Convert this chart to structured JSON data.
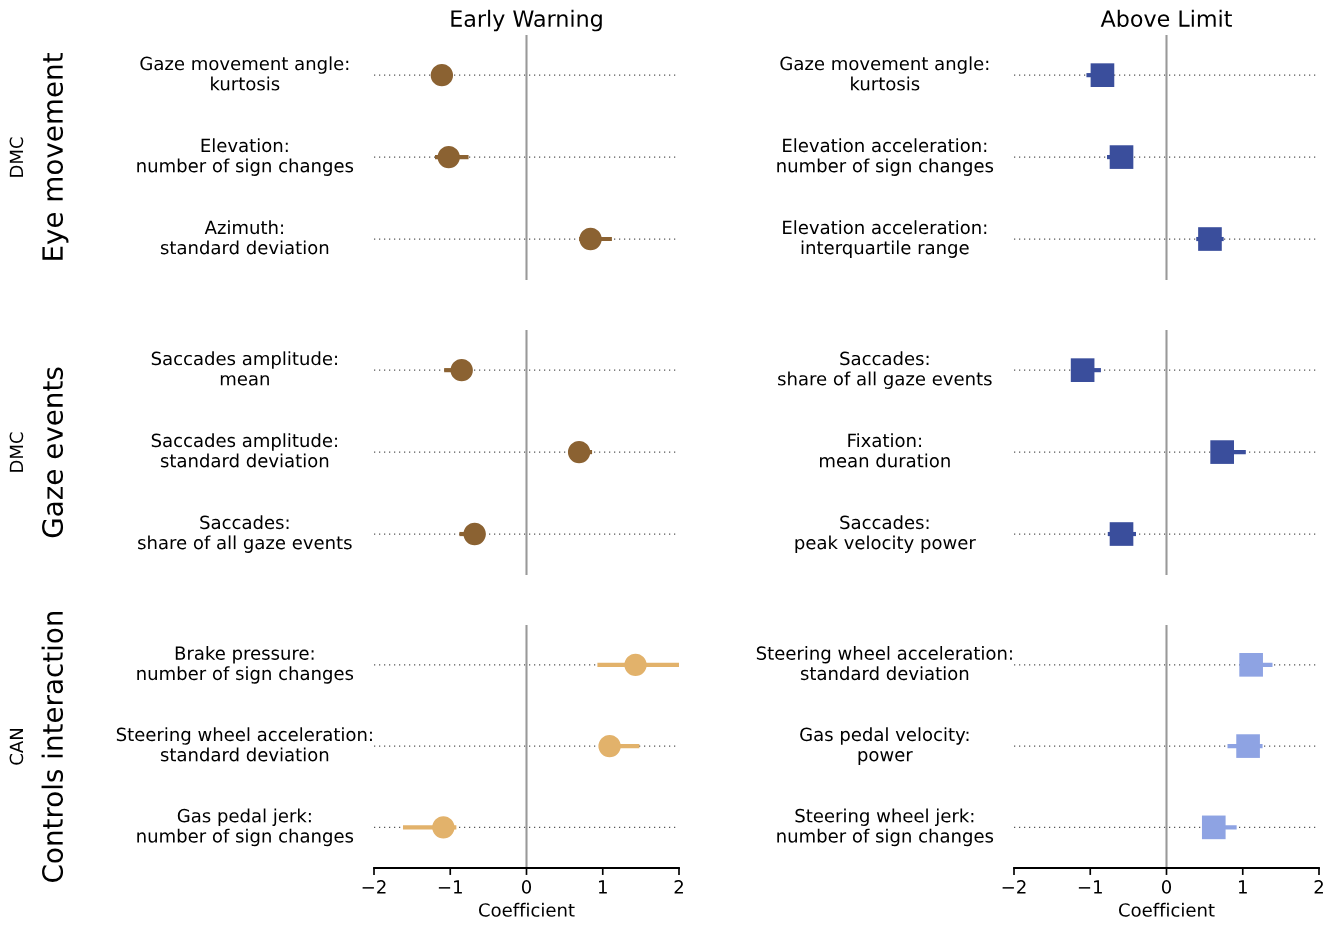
{
  "chart_data": [
    {
      "type": "scatter",
      "orientation": "horizontal",
      "title": "Early Warning",
      "ylabel": "Eye movement",
      "annotations": [
        "DMC"
      ],
      "categories": [
        "Gaze movement angle:\nkurtosis",
        "Elevation:\nnumber of sign changes",
        "Azimuth:\nstandard deviation"
      ],
      "values": [
        -1.11,
        -1.02,
        0.84
      ],
      "errors": [
        null,
        [
          -1.2,
          -0.76
        ],
        [
          0.69,
          1.12
        ]
      ],
      "color": "#8b6232",
      "marker": "circle",
      "xlim": [
        -2,
        2
      ],
      "ref_lines": [
        {
          "axis": "x",
          "value": 0,
          "color": "#999999"
        }
      ],
      "grid": "y",
      "tick_labels": "y"
    },
    {
      "type": "scatter",
      "orientation": "horizontal",
      "title": "Above Limit",
      "categories": [
        "Gaze movement angle:\nkurtosis",
        "Elevation acceleration:\nnumber of sign changes",
        "Elevation acceleration:\ninterquartile range"
      ],
      "values": [
        -0.84,
        -0.59,
        0.57
      ],
      "errors": [
        [
          -1.05,
          -0.69
        ],
        [
          -0.78,
          -0.44
        ],
        [
          0.39,
          0.75
        ]
      ],
      "color": "#3a4e9c",
      "marker": "square",
      "xlim": [
        -2,
        2
      ],
      "ref_lines": [
        {
          "axis": "x",
          "value": 0,
          "color": "#999999"
        }
      ],
      "grid": "y",
      "tick_labels": "y"
    },
    {
      "type": "scatter",
      "orientation": "horizontal",
      "ylabel": "Gaze events",
      "annotations": [
        "DMC"
      ],
      "categories": [
        "Saccades amplitude:\nmean",
        "Saccades amplitude:\nstandard deviation",
        "Saccades:\nshare of all gaze events"
      ],
      "values": [
        -0.85,
        0.69,
        -0.68
      ],
      "errors": [
        [
          -1.08,
          -0.75
        ],
        [
          0.59,
          0.86
        ],
        [
          -0.88,
          -0.55
        ]
      ],
      "color": "#8b6232",
      "marker": "circle",
      "xlim": [
        -2,
        2
      ],
      "ref_lines": [
        {
          "axis": "x",
          "value": 0,
          "color": "#999999"
        }
      ],
      "grid": "y",
      "tick_labels": "y"
    },
    {
      "type": "scatter",
      "orientation": "horizontal",
      "categories": [
        "Saccades:\nshare of all gaze events",
        "Fixation:\nmean duration",
        "Saccades:\npeak velocity power"
      ],
      "values": [
        -1.1,
        0.73,
        -0.59
      ],
      "errors": [
        [
          -1.1,
          -0.86
        ],
        [
          0.61,
          1.04
        ],
        [
          -0.77,
          -0.4
        ]
      ],
      "color": "#3a4e9c",
      "marker": "square",
      "xlim": [
        -2,
        2
      ],
      "ref_lines": [
        {
          "axis": "x",
          "value": 0,
          "color": "#999999"
        }
      ],
      "grid": "y",
      "tick_labels": "y"
    },
    {
      "type": "scatter",
      "orientation": "horizontal",
      "xlabel": "Coefficient",
      "ylabel": "Controls interaction",
      "annotations": [
        "CAN"
      ],
      "categories": [
        "Brake pressure:\nnumber of sign changes",
        "Steering wheel acceleration:\nstandard deviation",
        "Gas pedal jerk:\nnumber of sign changes"
      ],
      "values": [
        1.43,
        1.09,
        -1.09
      ],
      "errors": [
        [
          0.93,
          2.0
        ],
        [
          0.95,
          1.48
        ],
        [
          -1.62,
          -0.92
        ]
      ],
      "color": "#e2b26b",
      "marker": "circle",
      "xlim": [
        -2,
        2
      ],
      "xticks": [
        {
          "value": -2,
          "label": "−2"
        },
        {
          "value": -1,
          "label": "−1"
        },
        {
          "value": 0,
          "label": "0"
        },
        {
          "value": 1,
          "label": "1"
        },
        {
          "value": 2,
          "label": "2"
        }
      ],
      "ref_lines": [
        {
          "axis": "x",
          "value": 0,
          "color": "#999999"
        }
      ],
      "grid": "y"
    },
    {
      "type": "scatter",
      "orientation": "horizontal",
      "xlabel": "Coefficient",
      "categories": [
        "Steering wheel acceleration:\nstandard deviation",
        "Gas pedal velocity:\npower",
        "Steering wheel jerk:\nnumber of sign changes"
      ],
      "values": [
        1.11,
        1.07,
        0.62
      ],
      "errors": [
        [
          0.97,
          1.39
        ],
        [
          0.8,
          1.26
        ],
        [
          0.5,
          0.92
        ]
      ],
      "color": "#8ea3e3",
      "marker": "square",
      "xlim": [
        -2,
        2
      ],
      "xticks": [
        {
          "value": -2,
          "label": "−2"
        },
        {
          "value": -1,
          "label": "−1"
        },
        {
          "value": 0,
          "label": "0"
        },
        {
          "value": 1,
          "label": "1"
        },
        {
          "value": 2,
          "label": "2"
        }
      ],
      "ref_lines": [
        {
          "axis": "x",
          "value": 0,
          "color": "#999999"
        }
      ],
      "grid": "y"
    }
  ]
}
